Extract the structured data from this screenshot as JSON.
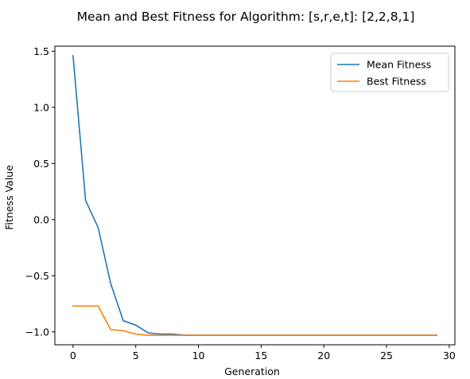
{
  "chart_data": {
    "type": "line",
    "title": "Mean and Best Fitness for Algorithm: [s,r,e,t]: [2,2,8,1]",
    "xlabel": "Generation",
    "ylabel": "Fitness Value",
    "xlim": [
      -1.45,
      30.45
    ],
    "ylim": [
      -1.115,
      1.545
    ],
    "x_ticks": [
      0,
      5,
      10,
      15,
      20,
      25,
      30
    ],
    "x_tick_labels": [
      "0",
      "5",
      "10",
      "15",
      "20",
      "25",
      "30"
    ],
    "y_ticks": [
      1.5,
      1.0,
      0.5,
      0.0,
      -0.5,
      -1.0
    ],
    "y_tick_labels": [
      "1.5",
      "1.0",
      "0.5",
      "0.0",
      "−0.5",
      "−1.0"
    ],
    "grid": false,
    "legend_position": "top-right",
    "x": [
      0,
      1,
      2,
      3,
      4,
      5,
      6,
      7,
      8,
      9,
      10,
      11,
      12,
      13,
      14,
      15,
      16,
      17,
      18,
      19,
      20,
      21,
      22,
      23,
      24,
      25,
      26,
      27,
      28,
      29
    ],
    "series": [
      {
        "name": "Mean Fitness",
        "color": "#1f77b4",
        "values": [
          1.46,
          0.17,
          -0.07,
          -0.57,
          -0.9,
          -0.94,
          -1.01,
          -1.02,
          -1.02,
          -1.03,
          -1.03,
          -1.03,
          -1.03,
          -1.03,
          -1.03,
          -1.03,
          -1.03,
          -1.03,
          -1.03,
          -1.03,
          -1.03,
          -1.03,
          -1.03,
          -1.03,
          -1.03,
          -1.03,
          -1.03,
          -1.03,
          -1.03,
          -1.03
        ]
      },
      {
        "name": "Best Fitness",
        "color": "#ff7f0e",
        "values": [
          -0.77,
          -0.77,
          -0.77,
          -0.98,
          -0.99,
          -1.02,
          -1.03,
          -1.03,
          -1.03,
          -1.03,
          -1.03,
          -1.03,
          -1.03,
          -1.03,
          -1.03,
          -1.03,
          -1.03,
          -1.03,
          -1.03,
          -1.03,
          -1.03,
          -1.03,
          -1.03,
          -1.03,
          -1.03,
          -1.03,
          -1.03,
          -1.03,
          -1.03,
          -1.03
        ]
      }
    ]
  }
}
